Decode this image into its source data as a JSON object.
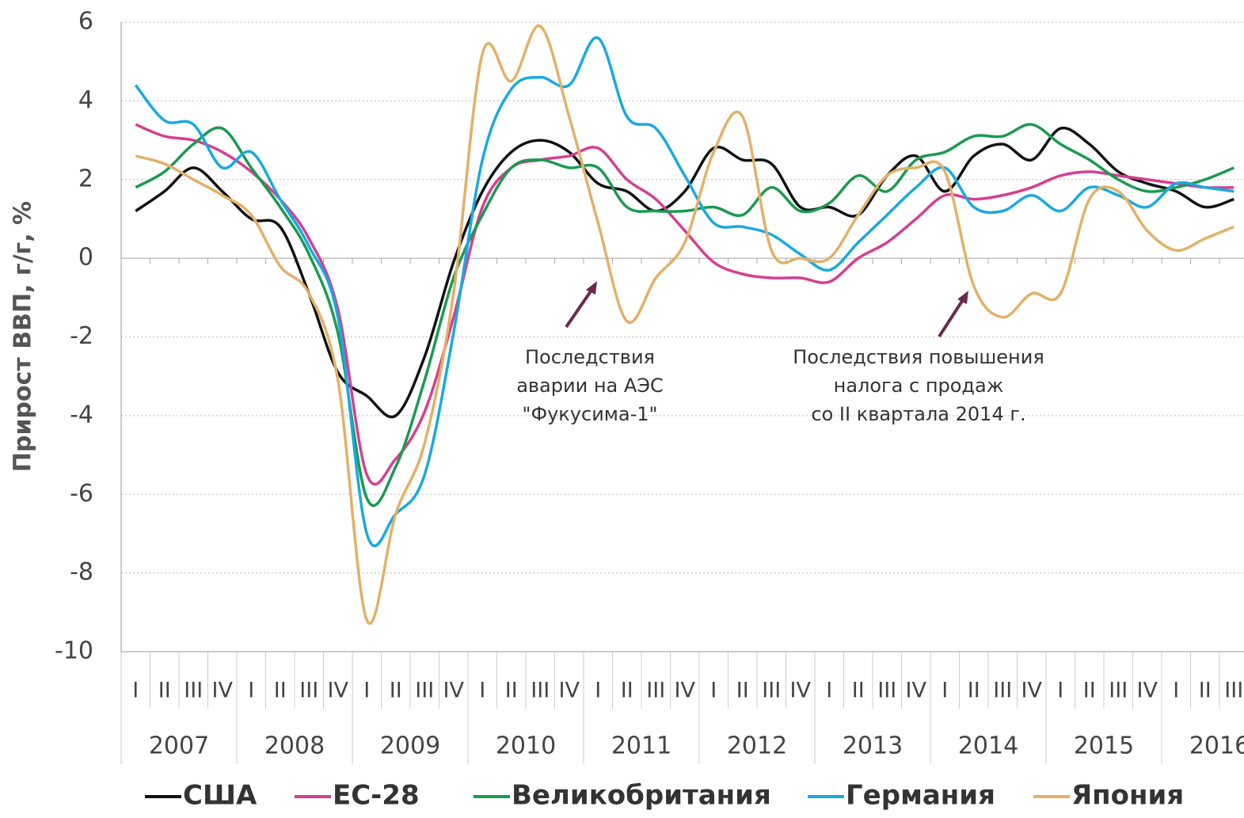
{
  "chart_data": {
    "type": "line",
    "y_label": "Прирост ВВП, г/г, %",
    "categories": [
      "I",
      "II",
      "III",
      "IV",
      "I",
      "II",
      "III",
      "IV",
      "I",
      "II",
      "III",
      "IV",
      "I",
      "II",
      "III",
      "IV",
      "I",
      "II",
      "III",
      "IV",
      "I",
      "II",
      "III",
      "IV",
      "I",
      "II",
      "III",
      "IV",
      "I",
      "II",
      "III",
      "IV",
      "I",
      "II",
      "III",
      "IV",
      "I",
      "II",
      "III"
    ],
    "years": [
      "2007",
      "2008",
      "2009",
      "2010",
      "2011",
      "2012",
      "2013",
      "2014",
      "2015",
      "2016"
    ],
    "ylim": [
      -10,
      6
    ],
    "yticks": [
      6,
      4,
      2,
      0,
      -2,
      -4,
      -6,
      -8,
      -10
    ],
    "grid": true,
    "series": [
      {
        "name": "США",
        "color": "#111111",
        "values": [
          1.2,
          1.7,
          2.3,
          1.7,
          1.0,
          0.8,
          -0.9,
          -2.9,
          -3.5,
          -4.0,
          -2.5,
          -0.1,
          1.7,
          2.7,
          3.0,
          2.7,
          1.9,
          1.7,
          1.2,
          1.7,
          2.8,
          2.5,
          2.4,
          1.3,
          1.3,
          1.1,
          2.1,
          2.6,
          1.7,
          2.6,
          2.9,
          2.5,
          3.3,
          2.9,
          2.2,
          1.9,
          1.7,
          1.3,
          1.5
        ]
      },
      {
        "name": "ЕС-28",
        "color": "#d63f8f",
        "values": [
          3.4,
          3.1,
          3.0,
          2.7,
          2.2,
          1.5,
          0.5,
          -1.3,
          -5.5,
          -5.1,
          -3.9,
          -1.5,
          1.3,
          2.3,
          2.5,
          2.6,
          2.8,
          2.0,
          1.5,
          0.7,
          -0.1,
          -0.4,
          -0.5,
          -0.5,
          -0.6,
          0.0,
          0.4,
          1.0,
          1.6,
          1.5,
          1.6,
          1.8,
          2.1,
          2.2,
          2.1,
          2.0,
          1.9,
          1.8,
          1.8
        ]
      },
      {
        "name": "Великобритания",
        "color": "#1a9a50",
        "values": [
          1.8,
          2.2,
          2.9,
          3.3,
          2.3,
          1.3,
          0.1,
          -1.9,
          -6.1,
          -5.3,
          -3.1,
          -0.5,
          1.1,
          2.3,
          2.5,
          2.3,
          2.3,
          1.3,
          1.2,
          1.2,
          1.3,
          1.1,
          1.8,
          1.2,
          1.4,
          2.1,
          1.7,
          2.5,
          2.7,
          3.1,
          3.1,
          3.4,
          2.9,
          2.5,
          2.0,
          1.7,
          1.8,
          2.0,
          2.3
        ]
      },
      {
        "name": "Германия",
        "color": "#19a9e0",
        "values": [
          4.4,
          3.5,
          3.4,
          2.3,
          2.7,
          1.5,
          0.3,
          -1.5,
          -7.0,
          -6.5,
          -5.5,
          -1.9,
          2.5,
          4.3,
          4.6,
          4.4,
          5.6,
          3.6,
          3.3,
          2.1,
          0.9,
          0.8,
          0.6,
          0.1,
          -0.3,
          0.4,
          1.1,
          1.8,
          2.3,
          1.3,
          1.2,
          1.6,
          1.2,
          1.8,
          1.6,
          1.3,
          1.9,
          1.8,
          1.7
        ]
      },
      {
        "name": "Япония",
        "color": "#e3b068",
        "values": [
          2.6,
          2.4,
          2.0,
          1.6,
          1.1,
          -0.2,
          -0.9,
          -3.1,
          -9.2,
          -6.5,
          -4.7,
          -0.9,
          5.2,
          4.5,
          5.9,
          3.6,
          0.9,
          -1.6,
          -0.5,
          0.4,
          2.7,
          3.6,
          0.2,
          0.0,
          0.0,
          1.1,
          2.1,
          2.3,
          2.2,
          -0.7,
          -1.5,
          -0.9,
          -0.9,
          1.5,
          1.7,
          0.7,
          0.2,
          0.5,
          0.8
        ]
      }
    ],
    "annotations": [
      {
        "lines": [
          "Последствия",
          "аварии на АЭС",
          "\"Фукусима-1\""
        ]
      },
      {
        "lines": [
          "Последствия повышения",
          "налога с продаж",
          "со II квартала 2014 г."
        ]
      }
    ]
  }
}
